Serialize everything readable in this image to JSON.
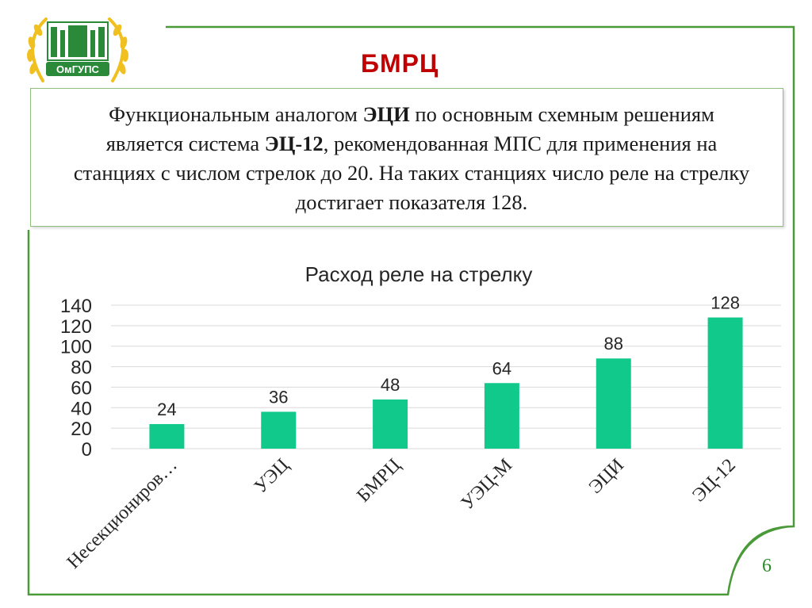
{
  "slide": {
    "title": "БМРЦ",
    "logo_text": "ОмГУПС",
    "paragraph": {
      "part1": "Функциональным аналогом ",
      "bold1": "ЭЦИ",
      "part2": " по основным схемным решениям является система ",
      "bold2": "ЭЦ-12",
      "part3": ", рекомендованная МПС для применения на станциях с числом стрелок до 20. На таких станциях число реле на стрелку достигает показателя 128."
    },
    "page_number": "6"
  },
  "colors": {
    "bar": "#12c98c",
    "title": "#c00000",
    "frame": "#4a9a3a"
  },
  "chart_data": {
    "type": "bar",
    "title": "Расход реле на стрелку",
    "categories": [
      "Несекциониров…",
      "УЭЦ",
      "БМРЦ",
      "УЭЦ-М",
      "ЭЦИ",
      "ЭЦ-12"
    ],
    "values": [
      24,
      36,
      48,
      64,
      88,
      128
    ],
    "ylim": [
      0,
      140
    ],
    "yticks": [
      "0",
      "20",
      "40",
      "60",
      "80",
      "100",
      "120",
      "140"
    ],
    "xlabel": "",
    "ylabel": "",
    "grid": true,
    "data_labels": true
  }
}
